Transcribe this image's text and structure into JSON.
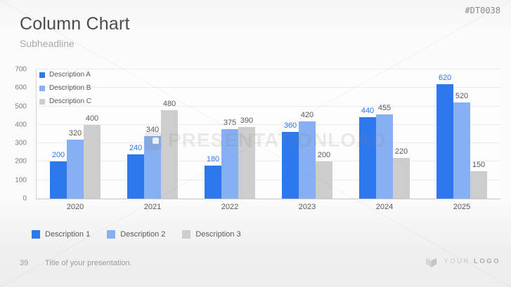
{
  "header": {
    "title": "Column Chart",
    "subtitle": "Subheadline",
    "product_code": "#DT0038"
  },
  "chart_data": {
    "type": "bar",
    "title": "",
    "xlabel": "",
    "ylabel": "",
    "categories": [
      "2020",
      "2021",
      "2022",
      "2023",
      "2024",
      "2025"
    ],
    "series": [
      {
        "name": "Description A",
        "color": "#2e78ee",
        "value_label_color": "#2e78ee",
        "values": [
          200,
          240,
          180,
          360,
          440,
          620
        ]
      },
      {
        "name": "Description B",
        "color": "#87b0f4",
        "value_label_color": "#595959",
        "values": [
          320,
          340,
          375,
          420,
          455,
          520
        ]
      },
      {
        "name": "Description C",
        "color": "#cdcdcd",
        "value_label_color": "#595959",
        "values": [
          400,
          480,
          390,
          200,
          220,
          150
        ]
      }
    ],
    "ylim": [
      0,
      700
    ],
    "ytick_step": 100,
    "grid": true,
    "legend_top_position": "inside-top-left",
    "legend_bottom": [
      {
        "label": "Description 1",
        "color": "#2e78ee"
      },
      {
        "label": "Description 2",
        "color": "#87b0f4"
      },
      {
        "label": "Description 3",
        "color": "#cdcdcd"
      }
    ]
  },
  "watermark": {
    "text": "PRESENTATIONLOAD"
  },
  "footer": {
    "page_number": "39",
    "text": "Title of your presentation.",
    "logo_your": "YOUR",
    "logo_logo": "LOGO"
  }
}
